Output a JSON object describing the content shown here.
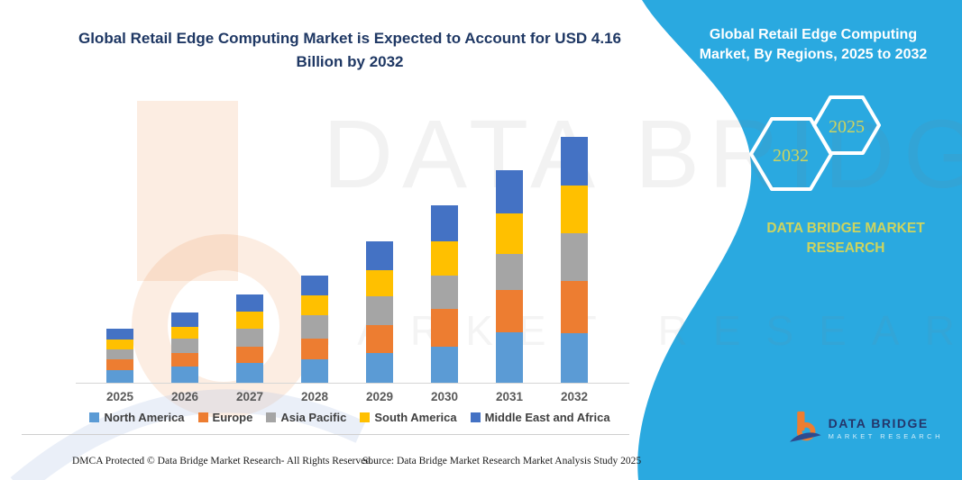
{
  "main_title": "Global Retail Edge Computing Market is Expected to Account for USD 4.16 Billion by 2032",
  "sidebar": {
    "title": "Global Retail Edge Computing Market, By Regions, 2025 to 2032",
    "hexagon_left": "2032",
    "hexagon_right": "2025",
    "brand_text": "DATA BRIDGE MARKET RESEARCH",
    "accent_color": "#CDD45F",
    "background_color": "#2AA9E0"
  },
  "logo": {
    "name": "DATA BRIDGE",
    "subtitle": "MARKET RESEARCH"
  },
  "watermark": {
    "line1": "DATA BRIDGE",
    "line2": "MARKET RESEARCH"
  },
  "footer": {
    "left": "DMCA Protected © Data Bridge Market Research-  All Rights Reserved.",
    "right": "Source: Data Bridge Market Research  Market Analysis Study 2025"
  },
  "chart_data": {
    "type": "bar",
    "stacked": true,
    "title": "Global Retail Edge Computing Market, By Regions, 2025 to 2032",
    "unit": "USD Billion",
    "categories": [
      "2025",
      "2026",
      "2027",
      "2028",
      "2029",
      "2030",
      "2031",
      "2032"
    ],
    "series": [
      {
        "name": "North America",
        "color": "#5B9BD5",
        "values": [
          0.21,
          0.27,
          0.34,
          0.4,
          0.5,
          0.61,
          0.85,
          0.84
        ]
      },
      {
        "name": "Europe",
        "color": "#ED7D31",
        "values": [
          0.18,
          0.24,
          0.27,
          0.34,
          0.47,
          0.64,
          0.72,
          0.88
        ]
      },
      {
        "name": "Asia Pacific",
        "color": "#A5A5A5",
        "values": [
          0.17,
          0.23,
          0.3,
          0.4,
          0.5,
          0.56,
          0.61,
          0.81
        ]
      },
      {
        "name": "South America",
        "color": "#FFC000",
        "values": [
          0.17,
          0.21,
          0.3,
          0.34,
          0.43,
          0.58,
          0.69,
          0.81
        ]
      },
      {
        "name": "Middle East and Africa",
        "color": "#4472C4",
        "values": [
          0.18,
          0.24,
          0.29,
          0.34,
          0.49,
          0.61,
          0.73,
          0.82
        ]
      }
    ],
    "totals": [
      0.91,
      1.19,
      1.5,
      1.82,
      2.39,
      3.0,
      3.6,
      4.16
    ],
    "highlight_total_2032": "USD 4.16 Billion",
    "ylim": [
      0,
      4.4
    ],
    "grid": false,
    "legend_position": "bottom"
  }
}
